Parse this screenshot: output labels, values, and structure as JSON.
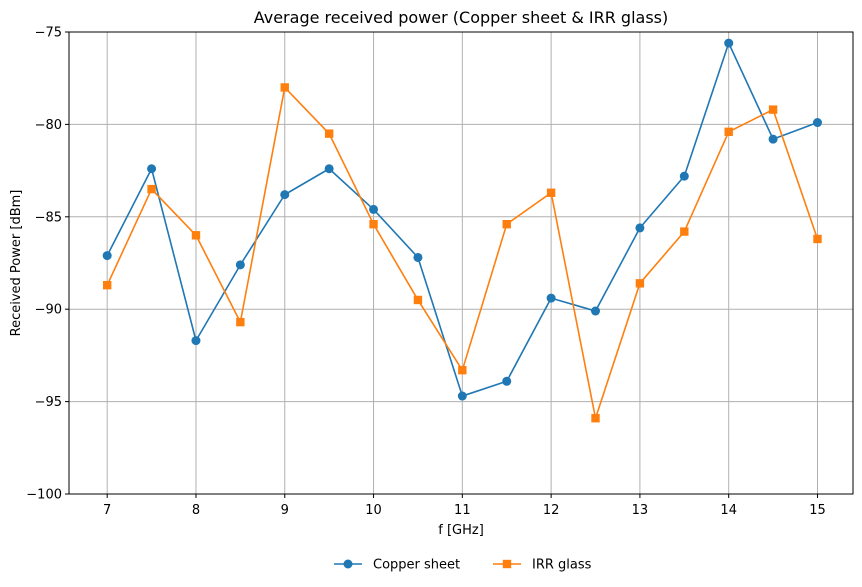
{
  "chart_data": {
    "type": "line",
    "title": "Average received power (Copper sheet & IRR glass)",
    "xlabel": "f [GHz]",
    "ylabel": "Received Power [dBm]",
    "xlim": [
      6.57,
      15.4
    ],
    "ylim": [
      -100,
      -75
    ],
    "xticks": [
      7,
      8,
      9,
      10,
      11,
      12,
      13,
      14,
      15
    ],
    "yticks": [
      -100,
      -95,
      -90,
      -85,
      -80,
      -75
    ],
    "grid": true,
    "legend_position": "bottom-center",
    "x": [
      7,
      7.5,
      8,
      8.5,
      9,
      9.5,
      10,
      10.5,
      11,
      11.5,
      12,
      12.5,
      13,
      13.5,
      14,
      14.5,
      15
    ],
    "series": [
      {
        "name": "Copper sheet",
        "color": "#1f77b4",
        "marker": "circle",
        "values": [
          -87.1,
          -82.4,
          -91.7,
          -87.6,
          -83.8,
          -82.4,
          -84.6,
          -87.2,
          -94.7,
          -93.9,
          -89.4,
          -90.1,
          -85.6,
          -82.8,
          -75.6,
          -80.8,
          -79.9
        ]
      },
      {
        "name": "IRR glass",
        "color": "#ff7f0e",
        "marker": "square",
        "values": [
          -88.7,
          -83.5,
          -86.0,
          -90.7,
          -78.0,
          -80.5,
          -85.4,
          -89.5,
          -93.3,
          -85.4,
          -83.7,
          -95.9,
          -88.6,
          -85.8,
          -80.4,
          -79.2,
          -86.2
        ]
      }
    ]
  }
}
